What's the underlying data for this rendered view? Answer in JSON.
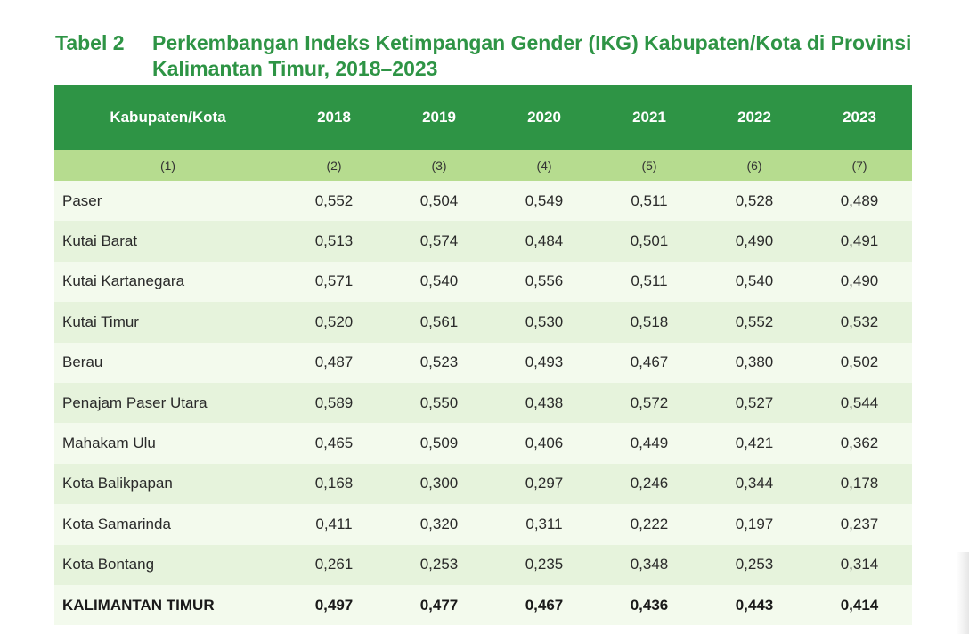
{
  "caption": {
    "label": "Tabel 2",
    "title": "Perkembangan Indeks Ketimpangan Gender (IKG) Kabupaten/Kota di Provinsi Kalimantan Timur, 2018–2023"
  },
  "table": {
    "header": [
      "Kabupaten/Kota",
      "2018",
      "2019",
      "2020",
      "2021",
      "2022",
      "2023"
    ],
    "column_numbers": [
      "(1)",
      "(2)",
      "(3)",
      "(4)",
      "(5)",
      "(6)",
      "(7)"
    ],
    "rows": [
      {
        "name": "Paser",
        "values": [
          "0,552",
          "0,504",
          "0,549",
          "0,511",
          "0,528",
          "0,489"
        ]
      },
      {
        "name": "Kutai Barat",
        "values": [
          "0,513",
          "0,574",
          "0,484",
          "0,501",
          "0,490",
          "0,491"
        ]
      },
      {
        "name": "Kutai Kartanegara",
        "values": [
          "0,571",
          "0,540",
          "0,556",
          "0,511",
          "0,540",
          "0,490"
        ]
      },
      {
        "name": "Kutai Timur",
        "values": [
          "0,520",
          "0,561",
          "0,530",
          "0,518",
          "0,552",
          "0,532"
        ]
      },
      {
        "name": "Berau",
        "values": [
          "0,487",
          "0,523",
          "0,493",
          "0,467",
          "0,380",
          "0,502"
        ]
      },
      {
        "name": "Penajam Paser Utara",
        "values": [
          "0,589",
          "0,550",
          "0,438",
          "0,572",
          "0,527",
          "0,544"
        ]
      },
      {
        "name": "Mahakam Ulu",
        "values": [
          "0,465",
          "0,509",
          "0,406",
          "0,449",
          "0,421",
          "0,362"
        ]
      },
      {
        "name": "Kota Balikpapan",
        "values": [
          "0,168",
          "0,300",
          "0,297",
          "0,246",
          "0,344",
          "0,178"
        ]
      },
      {
        "name": "Kota Samarinda",
        "values": [
          "0,411",
          "0,320",
          "0,311",
          "0,222",
          "0,197",
          "0,237"
        ]
      },
      {
        "name": "Kota Bontang",
        "values": [
          "0,261",
          "0,253",
          "0,235",
          "0,348",
          "0,253",
          "0,314"
        ]
      }
    ],
    "total": {
      "name": "KALIMANTAN TIMUR",
      "values": [
        "0,497",
        "0,477",
        "0,467",
        "0,436",
        "0,443",
        "0,414"
      ]
    }
  },
  "colors": {
    "header_green": "#2e9445",
    "subheader_green": "#b6dc8f",
    "row_light": "#f3faed",
    "row_alt": "#e6f3dc"
  }
}
